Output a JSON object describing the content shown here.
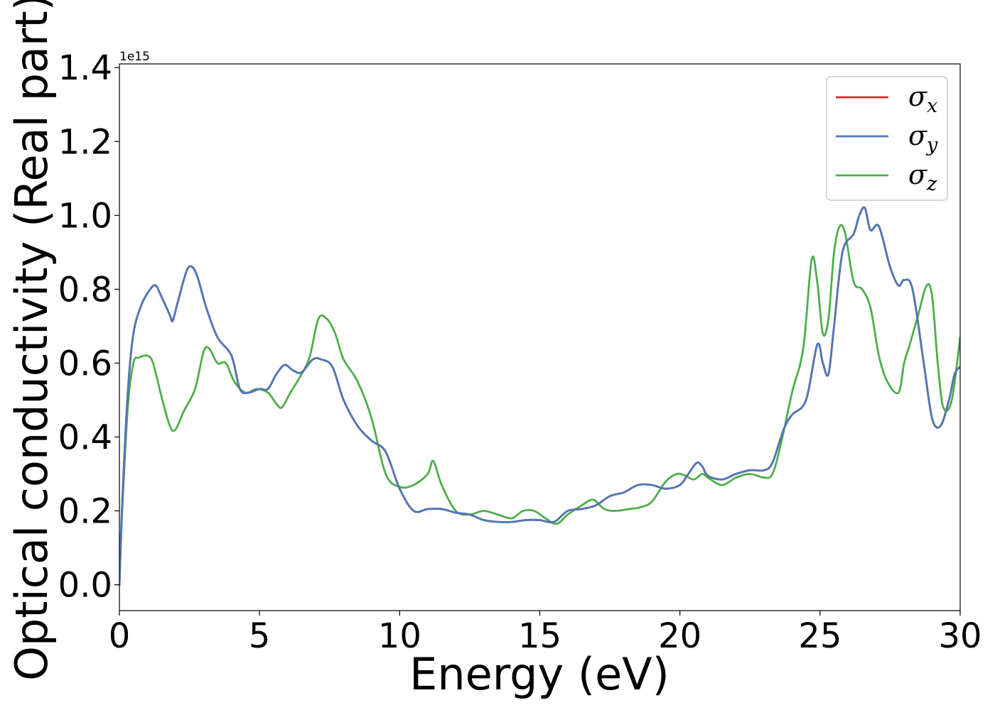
{
  "chart_data": {
    "type": "line",
    "title": "",
    "xlabel": "Energy (eV)",
    "ylabel": "Optical conductivity (Real part)",
    "y_offset_label": "1e15",
    "xlim": [
      0,
      30
    ],
    "ylim": [
      -0.07,
      1.41
    ],
    "xticks": [
      0,
      5,
      10,
      15,
      20,
      25,
      30
    ],
    "xtick_labels": [
      "0",
      "5",
      "10",
      "15",
      "20",
      "25",
      "30"
    ],
    "yticks": [
      0.0,
      0.2,
      0.4,
      0.6,
      0.8,
      1.0,
      1.2,
      1.4
    ],
    "ytick_labels": [
      "0.0",
      "0.2",
      "0.4",
      "0.6",
      "0.8",
      "1.0",
      "1.2",
      "1.4"
    ],
    "grid": false,
    "legend_position": "upper-right",
    "series": [
      {
        "name": "σx",
        "base": "σ",
        "sub": "x",
        "color": "#d62728",
        "x": [
          0,
          0.1,
          0.3,
          0.5,
          0.8,
          1.1,
          1.3,
          1.5,
          1.8,
          1.9,
          2.1,
          2.4,
          2.6,
          2.8,
          3.1,
          3.5,
          4.0,
          4.3,
          4.6,
          5.0,
          5.3,
          5.6,
          5.9,
          6.2,
          6.5,
          6.9,
          7.2,
          7.6,
          8.0,
          8.5,
          9.0,
          9.5,
          10.0,
          10.5,
          11.0,
          11.5,
          12.0,
          12.5,
          13.0,
          13.5,
          14.0,
          14.5,
          15.0,
          15.5,
          16.0,
          16.5,
          17.0,
          17.5,
          18.0,
          18.5,
          19.0,
          19.5,
          20.0,
          20.3,
          20.6,
          20.8,
          21.0,
          21.5,
          22.0,
          22.5,
          23.0,
          23.3,
          23.7,
          24.0,
          24.5,
          24.9,
          25.1,
          25.3,
          25.5,
          25.8,
          26.2,
          26.4,
          26.6,
          26.8,
          27.1,
          27.5,
          27.8,
          28.0,
          28.3,
          28.7,
          29.0,
          29.3,
          29.6,
          29.8,
          30.0
        ],
        "y": [
          0.0,
          0.22,
          0.52,
          0.68,
          0.76,
          0.8,
          0.81,
          0.78,
          0.73,
          0.715,
          0.77,
          0.85,
          0.86,
          0.83,
          0.75,
          0.67,
          0.62,
          0.53,
          0.52,
          0.53,
          0.53,
          0.57,
          0.595,
          0.58,
          0.575,
          0.61,
          0.61,
          0.59,
          0.5,
          0.43,
          0.39,
          0.36,
          0.26,
          0.2,
          0.205,
          0.205,
          0.195,
          0.19,
          0.175,
          0.17,
          0.17,
          0.175,
          0.175,
          0.17,
          0.2,
          0.205,
          0.215,
          0.24,
          0.25,
          0.27,
          0.27,
          0.26,
          0.27,
          0.3,
          0.33,
          0.32,
          0.295,
          0.285,
          0.3,
          0.31,
          0.31,
          0.33,
          0.42,
          0.46,
          0.5,
          0.65,
          0.6,
          0.57,
          0.7,
          0.9,
          0.95,
          1.0,
          1.02,
          0.96,
          0.97,
          0.86,
          0.81,
          0.825,
          0.8,
          0.6,
          0.45,
          0.43,
          0.5,
          0.57,
          0.59
        ]
      },
      {
        "name": "σy",
        "base": "σ",
        "sub": "y",
        "color": "#4e79b5",
        "x": [
          0,
          0.1,
          0.3,
          0.5,
          0.8,
          1.1,
          1.3,
          1.5,
          1.8,
          1.9,
          2.1,
          2.4,
          2.6,
          2.8,
          3.1,
          3.5,
          4.0,
          4.3,
          4.6,
          5.0,
          5.3,
          5.6,
          5.9,
          6.2,
          6.5,
          6.9,
          7.2,
          7.6,
          8.0,
          8.5,
          9.0,
          9.5,
          10.0,
          10.5,
          11.0,
          11.5,
          12.0,
          12.5,
          13.0,
          13.5,
          14.0,
          14.5,
          15.0,
          15.5,
          16.0,
          16.5,
          17.0,
          17.5,
          18.0,
          18.5,
          19.0,
          19.5,
          20.0,
          20.3,
          20.6,
          20.8,
          21.0,
          21.5,
          22.0,
          22.5,
          23.0,
          23.3,
          23.7,
          24.0,
          24.5,
          24.9,
          25.1,
          25.3,
          25.5,
          25.8,
          26.2,
          26.4,
          26.6,
          26.8,
          27.1,
          27.5,
          27.8,
          28.0,
          28.3,
          28.7,
          29.0,
          29.3,
          29.6,
          29.8,
          30.0
        ],
        "y": [
          0.0,
          0.22,
          0.52,
          0.68,
          0.76,
          0.8,
          0.81,
          0.78,
          0.73,
          0.715,
          0.77,
          0.85,
          0.86,
          0.83,
          0.75,
          0.67,
          0.62,
          0.53,
          0.52,
          0.53,
          0.53,
          0.57,
          0.595,
          0.58,
          0.575,
          0.61,
          0.61,
          0.59,
          0.5,
          0.43,
          0.39,
          0.36,
          0.26,
          0.2,
          0.205,
          0.205,
          0.195,
          0.19,
          0.175,
          0.17,
          0.17,
          0.175,
          0.175,
          0.17,
          0.2,
          0.205,
          0.215,
          0.24,
          0.25,
          0.27,
          0.27,
          0.26,
          0.27,
          0.3,
          0.33,
          0.32,
          0.295,
          0.285,
          0.3,
          0.31,
          0.31,
          0.33,
          0.42,
          0.46,
          0.5,
          0.65,
          0.6,
          0.57,
          0.7,
          0.9,
          0.95,
          1.0,
          1.02,
          0.96,
          0.97,
          0.86,
          0.81,
          0.825,
          0.8,
          0.6,
          0.45,
          0.43,
          0.5,
          0.57,
          0.59
        ]
      },
      {
        "name": "σz",
        "base": "σ",
        "sub": "z",
        "color": "#4daf4a",
        "x": [
          0,
          0.1,
          0.3,
          0.5,
          0.7,
          1.0,
          1.2,
          1.5,
          1.8,
          2.0,
          2.3,
          2.7,
          3.0,
          3.2,
          3.5,
          3.8,
          4.1,
          4.5,
          4.9,
          5.3,
          5.6,
          5.8,
          6.1,
          6.5,
          6.8,
          7.1,
          7.4,
          7.7,
          8.0,
          8.5,
          9.0,
          9.5,
          10.0,
          10.5,
          11.0,
          11.2,
          11.5,
          12.0,
          12.5,
          13.0,
          13.5,
          14.0,
          14.4,
          14.8,
          15.2,
          15.6,
          16.0,
          16.5,
          16.9,
          17.3,
          17.7,
          18.2,
          18.6,
          19.0,
          19.5,
          19.9,
          20.2,
          20.5,
          20.8,
          21.0,
          21.5,
          22.0,
          22.5,
          23.0,
          23.3,
          23.6,
          24.0,
          24.4,
          24.7,
          24.9,
          25.1,
          25.3,
          25.5,
          25.7,
          25.9,
          26.2,
          26.5,
          26.8,
          27.1,
          27.4,
          27.8,
          28.0,
          28.2,
          28.5,
          28.8,
          29.0,
          29.2,
          29.4,
          29.7,
          30.0
        ],
        "y": [
          0.0,
          0.2,
          0.48,
          0.6,
          0.615,
          0.62,
          0.6,
          0.51,
          0.43,
          0.42,
          0.47,
          0.53,
          0.63,
          0.64,
          0.6,
          0.6,
          0.55,
          0.52,
          0.53,
          0.52,
          0.49,
          0.48,
          0.52,
          0.57,
          0.62,
          0.72,
          0.72,
          0.68,
          0.61,
          0.55,
          0.45,
          0.3,
          0.265,
          0.27,
          0.3,
          0.335,
          0.27,
          0.2,
          0.19,
          0.2,
          0.19,
          0.18,
          0.2,
          0.2,
          0.18,
          0.165,
          0.19,
          0.215,
          0.23,
          0.205,
          0.2,
          0.205,
          0.21,
          0.225,
          0.28,
          0.3,
          0.295,
          0.285,
          0.3,
          0.29,
          0.27,
          0.29,
          0.3,
          0.29,
          0.3,
          0.38,
          0.52,
          0.64,
          0.88,
          0.82,
          0.68,
          0.72,
          0.9,
          0.97,
          0.95,
          0.82,
          0.8,
          0.75,
          0.62,
          0.55,
          0.52,
          0.6,
          0.65,
          0.73,
          0.81,
          0.78,
          0.6,
          0.48,
          0.5,
          0.67
        ]
      }
    ]
  }
}
